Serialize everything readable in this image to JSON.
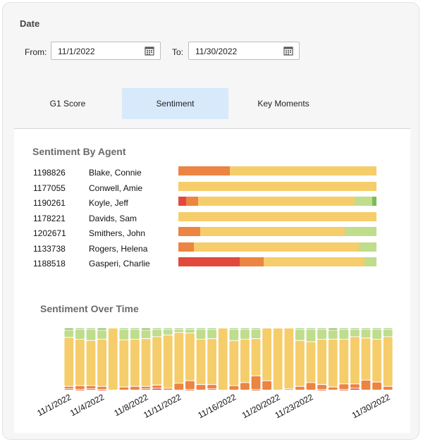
{
  "date": {
    "title": "Date",
    "from_label": "From:",
    "from_value": "11/1/2022",
    "to_label": "To:",
    "to_value": "11/30/2022"
  },
  "tabs": [
    {
      "label": "G1 Score",
      "active": false
    },
    {
      "label": "Sentiment",
      "active": true
    },
    {
      "label": "Key Moments",
      "active": false
    }
  ],
  "colors": {
    "very_negative": "#e2493d",
    "negative": "#ec8442",
    "neutral": "#f6cd6b",
    "positive": "#bfdd8c",
    "very_positive": "#7dbb57"
  },
  "agents_title": "Sentiment By Agent",
  "agents": [
    {
      "id": "1198826",
      "name": "Blake, Connie",
      "segments": [
        {
          "s": "negative",
          "v": 0.26
        },
        {
          "s": "neutral",
          "v": 0.74
        }
      ]
    },
    {
      "id": "1177055",
      "name": "Conwell, Amie",
      "segments": [
        {
          "s": "neutral",
          "v": 1.0
        }
      ]
    },
    {
      "id": "1190261",
      "name": "Koyle, Jeff",
      "segments": [
        {
          "s": "very_negative",
          "v": 0.04
        },
        {
          "s": "negative",
          "v": 0.06
        },
        {
          "s": "neutral",
          "v": 0.79
        },
        {
          "s": "positive",
          "v": 0.09
        },
        {
          "s": "very_positive",
          "v": 0.02
        }
      ]
    },
    {
      "id": "1178221",
      "name": "Davids, Sam",
      "segments": [
        {
          "s": "neutral",
          "v": 1.0
        }
      ]
    },
    {
      "id": "1202671",
      "name": "Smithers, John",
      "segments": [
        {
          "s": "negative",
          "v": 0.11
        },
        {
          "s": "neutral",
          "v": 0.73
        },
        {
          "s": "positive",
          "v": 0.16
        }
      ]
    },
    {
      "id": "1133738",
      "name": "Rogers, Helena",
      "segments": [
        {
          "s": "negative",
          "v": 0.08
        },
        {
          "s": "neutral",
          "v": 0.83
        },
        {
          "s": "positive",
          "v": 0.09
        }
      ]
    },
    {
      "id": "1188518",
      "name": "Gasperi, Charlie",
      "segments": [
        {
          "s": "very_negative",
          "v": 0.31
        },
        {
          "s": "negative",
          "v": 0.12
        },
        {
          "s": "neutral",
          "v": 0.51
        },
        {
          "s": "positive",
          "v": 0.06
        }
      ]
    }
  ],
  "chart_data": {
    "type": "bar",
    "title": "Sentiment Over Time",
    "stacked": true,
    "normalized": true,
    "categories": [
      "11/1/2022",
      "11/2/2022",
      "11/3/2022",
      "11/4/2022",
      "11/5/2022",
      "11/6/2022",
      "11/7/2022",
      "11/8/2022",
      "11/9/2022",
      "11/10/2022",
      "11/11/2022",
      "11/12/2022",
      "11/13/2022",
      "11/14/2022",
      "11/15/2022",
      "11/16/2022",
      "11/17/2022",
      "11/18/2022",
      "11/19/2022",
      "11/20/2022",
      "11/21/2022",
      "11/22/2022",
      "11/23/2022",
      "11/24/2022",
      "11/25/2022",
      "11/26/2022",
      "11/27/2022",
      "11/28/2022",
      "11/29/2022",
      "11/30/2022"
    ],
    "tick_labels": [
      "11/1/2022",
      "11/4/2022",
      "11/8/2022",
      "11/11/2022",
      "11/16/2022",
      "11/20/2022",
      "11/23/2022",
      "11/30/2022"
    ],
    "series": [
      {
        "name": "very_positive",
        "values": [
          0.03,
          0.02,
          0.02,
          0.03,
          0,
          0.02,
          0.02,
          0.03,
          0.02,
          0.02,
          0.02,
          0.02,
          0.02,
          0.02,
          0,
          0.02,
          0.02,
          0.02,
          0,
          0,
          0,
          0.02,
          0.02,
          0.02,
          0.03,
          0.02,
          0.02,
          0.02,
          0.02,
          0.02
        ]
      },
      {
        "name": "positive",
        "values": [
          0.12,
          0.16,
          0.18,
          0.15,
          0,
          0.17,
          0.16,
          0.14,
          0.12,
          0.09,
          0.05,
          0.06,
          0.16,
          0.15,
          0,
          0.18,
          0.16,
          0.15,
          0,
          0,
          0,
          0.18,
          0.2,
          0.16,
          0.15,
          0.16,
          0.12,
          0.14,
          0.16,
          0.12
        ]
      },
      {
        "name": "neutral",
        "values": [
          0.79,
          0.75,
          0.73,
          0.76,
          1.0,
          0.76,
          0.76,
          0.77,
          0.78,
          0.86,
          0.82,
          0.77,
          0.73,
          0.74,
          1.0,
          0.73,
          0.7,
          0.6,
          0.85,
          1.0,
          0.98,
          0.74,
          0.66,
          0.73,
          0.77,
          0.72,
          0.76,
          0.68,
          0.69,
          0.8
        ]
      },
      {
        "name": "negative",
        "values": [
          0.04,
          0.06,
          0.05,
          0.05,
          0,
          0.05,
          0.06,
          0.04,
          0.05,
          0.03,
          0.11,
          0.14,
          0.09,
          0.07,
          0,
          0.07,
          0.12,
          0.22,
          0.15,
          0,
          0.02,
          0.06,
          0.12,
          0.08,
          0.05,
          0.09,
          0.07,
          0.16,
          0.13,
          0.06
        ]
      },
      {
        "name": "very_negative",
        "values": [
          0.02,
          0.01,
          0.02,
          0.01,
          0,
          0,
          0,
          0.02,
          0.03,
          0,
          0,
          0.01,
          0,
          0.02,
          0,
          0,
          0,
          0.01,
          0,
          0,
          0,
          0,
          0,
          0.01,
          0,
          0.01,
          0.03,
          0,
          0,
          0
        ]
      }
    ]
  }
}
